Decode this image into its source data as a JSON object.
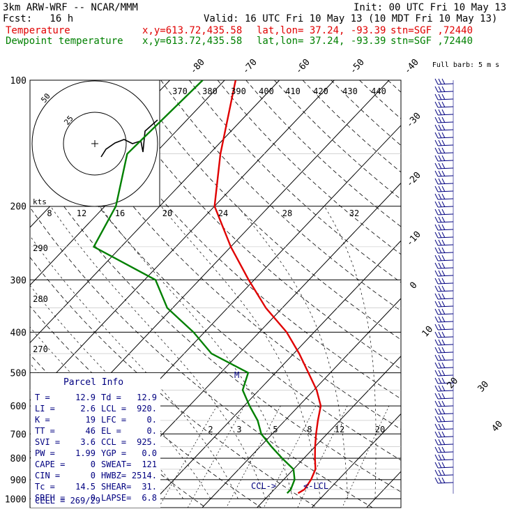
{
  "header": {
    "model": "3km ARW-WRF -- NCAR/MMM",
    "init": "Init: 00 UTC Fri 10 May 13",
    "fcst": "Fcst:   16 h",
    "valid": "Valid: 16 UTC Fri 10 May 13 (10 MDT Fri 10 May 13)",
    "temp_label": "Temperature",
    "dew_label": "Dewpoint temperature",
    "xy": "x,y=613.72,435.58",
    "latlon": "lat,lon= 37.24, -93.39",
    "stn": "stn=SGF ,72440"
  },
  "colors": {
    "temperature": "#e00000",
    "dewpoint": "#008000",
    "winds": "#000080",
    "grid": "#000000"
  },
  "chart_data": {
    "type": "line",
    "title": "",
    "pressure_levels": [
      100,
      200,
      300,
      400,
      500,
      600,
      700,
      800,
      900,
      1000
    ],
    "y_axis": "pressure (hPa), log scale",
    "isotherm_labels": [
      "-80",
      "-70",
      "-60",
      "-50",
      "-40",
      "-30",
      "-20",
      "-10",
      "0",
      "10",
      "20",
      "30",
      "40"
    ],
    "theta_labels": [
      "370",
      "380",
      "390",
      "400",
      "410",
      "420",
      "430",
      "440"
    ],
    "theta_side_labels": [
      "290",
      "280",
      "270"
    ],
    "mixing_ratio_labels": [
      "2",
      "3",
      "5",
      "8",
      "12",
      "20"
    ],
    "series": [
      {
        "name": "Temperature",
        "points": [
          [
            100,
            -68
          ],
          [
            150,
            -58
          ],
          [
            200,
            -50
          ],
          [
            250,
            -40
          ],
          [
            300,
            -31
          ],
          [
            350,
            -23
          ],
          [
            400,
            -15
          ],
          [
            450,
            -9
          ],
          [
            500,
            -4
          ],
          [
            550,
            0.5
          ],
          [
            600,
            4
          ],
          [
            650,
            6
          ],
          [
            700,
            8
          ],
          [
            750,
            10
          ],
          [
            800,
            12
          ],
          [
            850,
            14
          ],
          [
            900,
            15
          ],
          [
            950,
            15.5
          ],
          [
            970,
            15
          ]
        ]
      },
      {
        "name": "Dewpoint temperature",
        "points": [
          [
            100,
            -74
          ],
          [
            150,
            -75
          ],
          [
            200,
            -68
          ],
          [
            250,
            -65
          ],
          [
            300,
            -48
          ],
          [
            350,
            -41
          ],
          [
            400,
            -32
          ],
          [
            450,
            -25
          ],
          [
            500,
            -15
          ],
          [
            550,
            -13
          ],
          [
            600,
            -9
          ],
          [
            650,
            -5
          ],
          [
            700,
            -2
          ],
          [
            750,
            2
          ],
          [
            800,
            6
          ],
          [
            850,
            10
          ],
          [
            900,
            12
          ],
          [
            950,
            13
          ],
          [
            970,
            13
          ]
        ]
      }
    ],
    "hodograph": {
      "rings": [
        "50",
        "25"
      ],
      "units": "kts",
      "ticks": [
        "8",
        "12",
        "16",
        "20",
        "24",
        "28",
        "32"
      ]
    },
    "wind_legend": "Full barb: 5 m s",
    "annotations": [
      "CCL->",
      "<-LCL",
      "M"
    ],
    "parcel_info": {
      "title": "Parcel Info",
      "rows": [
        [
          "T  =",
          "12.9",
          "Td =",
          "12.9"
        ],
        [
          "LI =",
          "2.6",
          "LCL =",
          "920."
        ],
        [
          "K  =",
          "19",
          "LFC =",
          "0."
        ],
        [
          "TT =",
          "46",
          "EL  =",
          "0."
        ],
        [
          "SVI =",
          "3.6",
          "CCL =",
          "925."
        ],
        [
          "PW =",
          "1.99",
          "YGP =",
          "0.0"
        ],
        [
          "CAPE =",
          "0",
          "SWEAT=",
          "121"
        ],
        [
          "CIN  =",
          "0",
          "HWBZ=",
          "2514."
        ],
        [
          "Tc  =",
          "14.5",
          "SHEAR=",
          "31."
        ],
        [
          "SREH =",
          "0",
          "LAPSE=",
          "6.8"
        ]
      ],
      "cell": "CELL = 269/29"
    }
  }
}
